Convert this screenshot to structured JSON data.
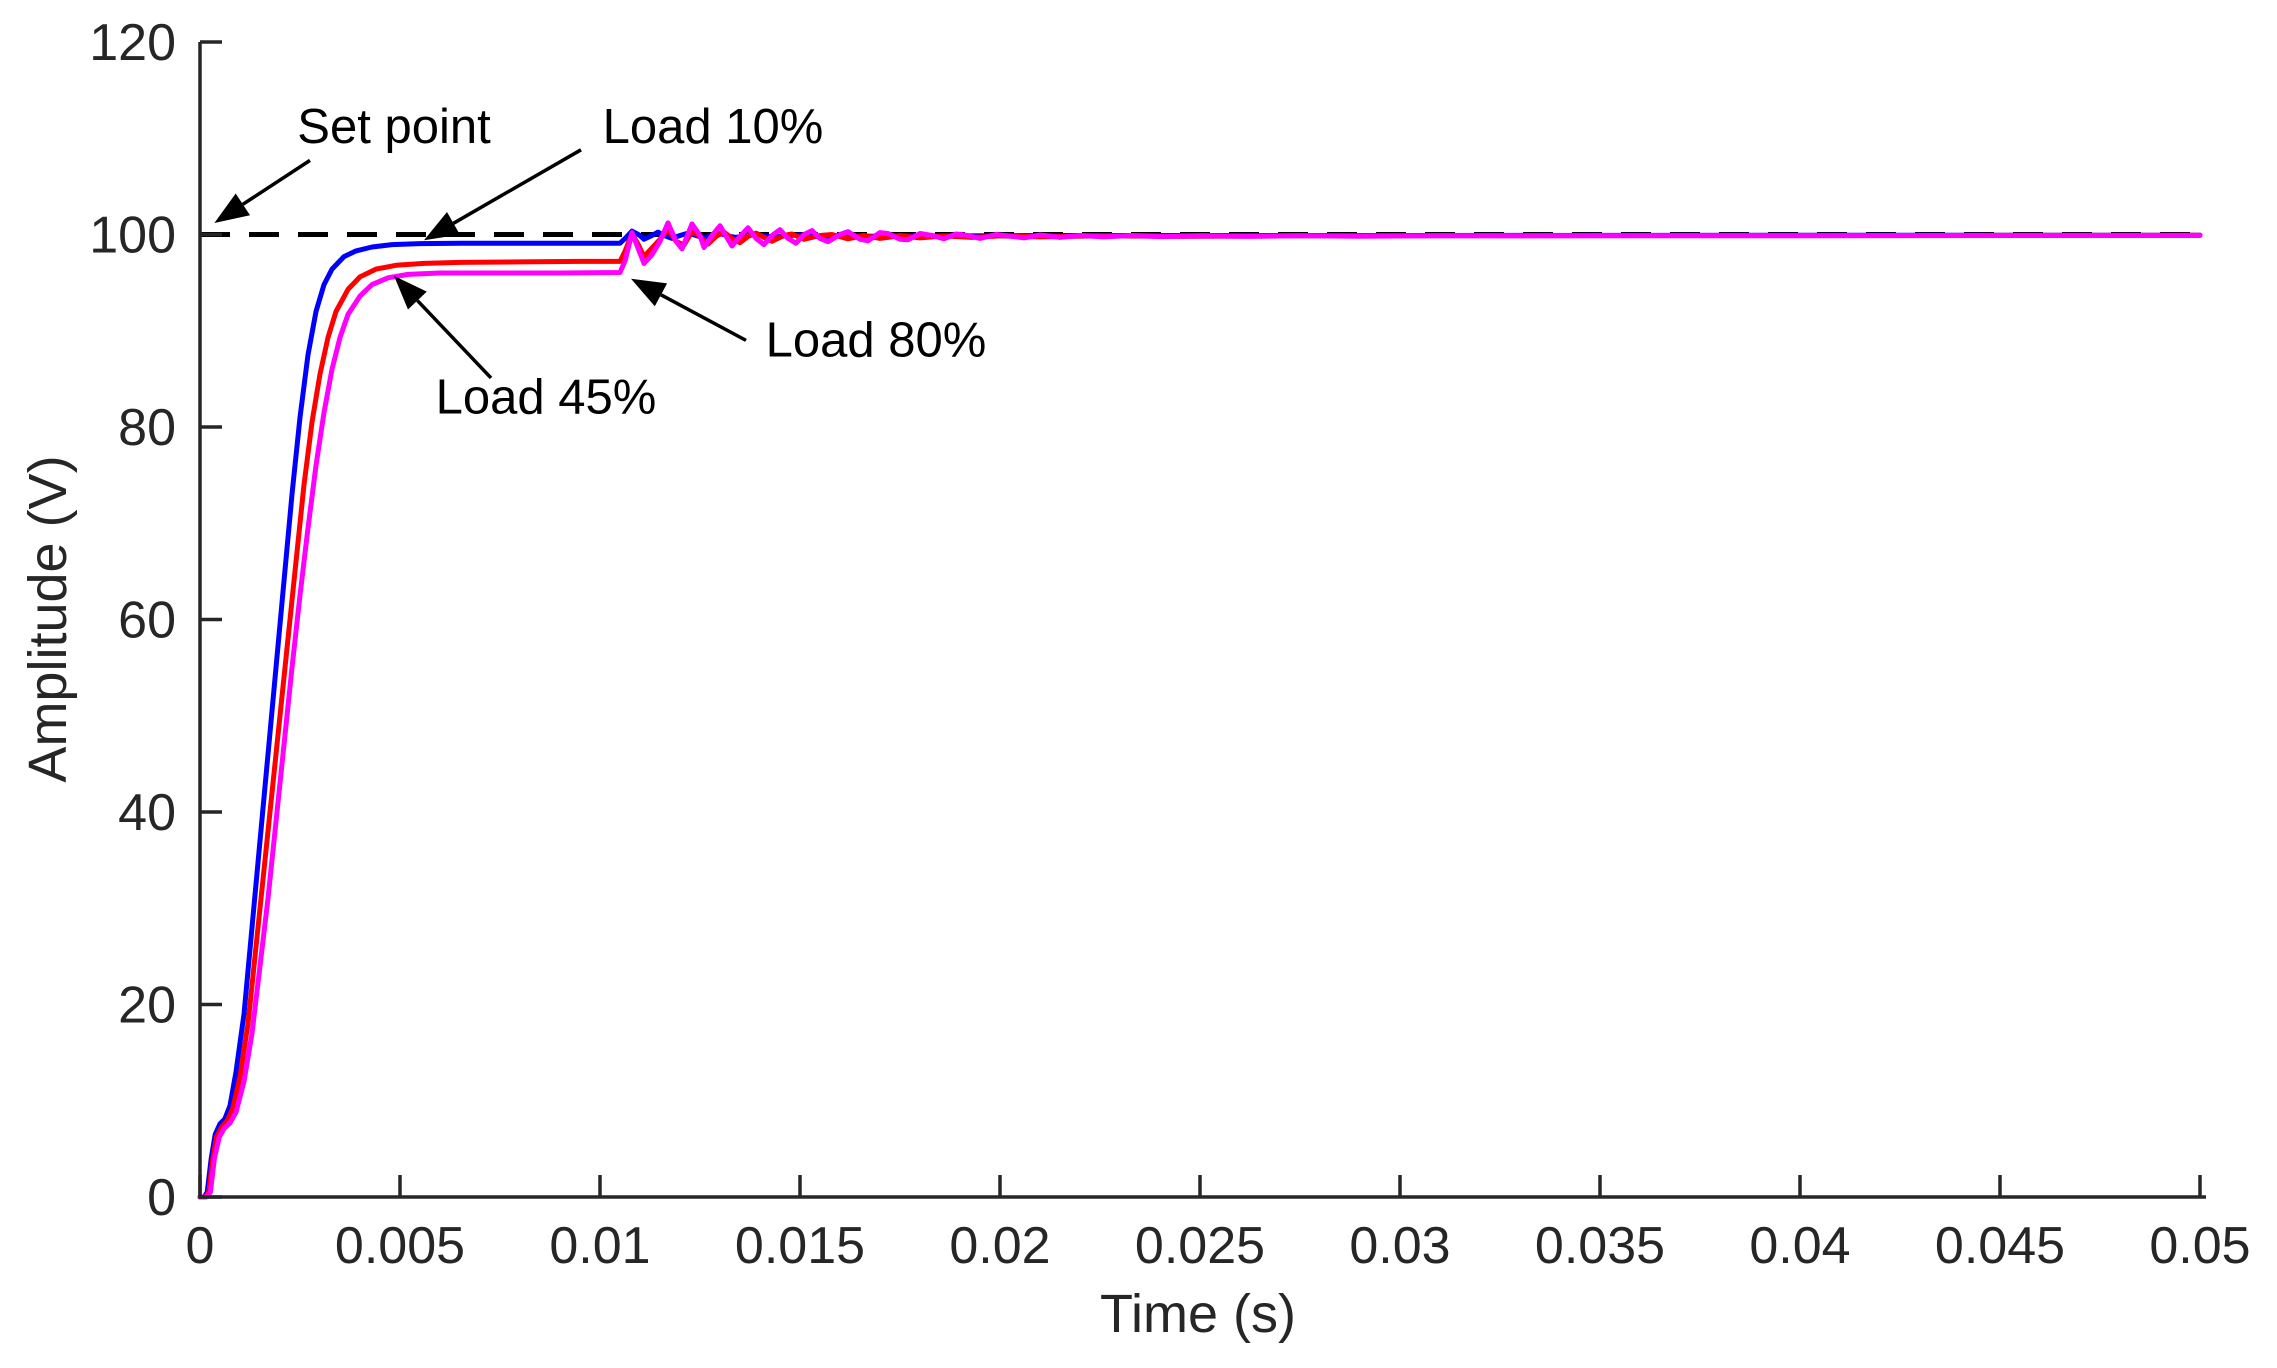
{
  "chart_data": {
    "type": "line",
    "title": "",
    "xlabel": "Time (s)",
    "ylabel": "Amplitude (V)",
    "xlim": [
      0,
      0.05
    ],
    "ylim": [
      0,
      120
    ],
    "grid": false,
    "legend_position": "none",
    "x_ticks": {
      "values": [
        0,
        0.005,
        0.01,
        0.015,
        0.02,
        0.025,
        0.03,
        0.035,
        0.04,
        0.045,
        0.05
      ],
      "labels": [
        "0",
        "0.005",
        "0.01",
        "0.015",
        "0.02",
        "0.025",
        "0.03",
        "0.035",
        "0.04",
        "0.045",
        "0.05"
      ]
    },
    "y_ticks": {
      "values": [
        0,
        20,
        40,
        60,
        80,
        100,
        120
      ],
      "labels": [
        "0",
        "20",
        "40",
        "60",
        "80",
        "100",
        "120"
      ]
    },
    "set_point": {
      "label": "Set point",
      "value": 100,
      "line_style": "dashed",
      "color": "#000000"
    },
    "series": [
      {
        "name": "Load 10%",
        "color": "#0000ff",
        "points": [
          [
            0.0,
            0
          ],
          [
            0.0001,
            0
          ],
          [
            0.00018,
            0.5
          ],
          [
            0.00028,
            4.0
          ],
          [
            0.00038,
            6.5
          ],
          [
            0.0005,
            7.6
          ],
          [
            0.00062,
            8.1
          ],
          [
            0.00075,
            9.5
          ],
          [
            0.0009,
            13
          ],
          [
            0.0011,
            19
          ],
          [
            0.0013,
            28
          ],
          [
            0.0015,
            37
          ],
          [
            0.0017,
            46
          ],
          [
            0.0019,
            55
          ],
          [
            0.0021,
            64
          ],
          [
            0.0023,
            73
          ],
          [
            0.0025,
            81
          ],
          [
            0.0027,
            87.5
          ],
          [
            0.0029,
            92
          ],
          [
            0.0031,
            94.8
          ],
          [
            0.0033,
            96.4
          ],
          [
            0.0036,
            97.7
          ],
          [
            0.0039,
            98.3
          ],
          [
            0.0043,
            98.7
          ],
          [
            0.0048,
            98.95
          ],
          [
            0.0055,
            99.05
          ],
          [
            0.0065,
            99.1
          ],
          [
            0.008,
            99.1
          ],
          [
            0.0095,
            99.1
          ],
          [
            0.0105,
            99.1
          ],
          [
            0.01063,
            99.6
          ],
          [
            0.0108,
            100.35
          ],
          [
            0.011,
            99.9
          ],
          [
            0.0111,
            99.5
          ],
          [
            0.0113,
            99.9
          ],
          [
            0.01145,
            100.25
          ],
          [
            0.0116,
            99.9
          ],
          [
            0.0118,
            99.6
          ],
          [
            0.012,
            99.9
          ],
          [
            0.0122,
            100.15
          ],
          [
            0.0124,
            99.9
          ],
          [
            0.0126,
            99.65
          ],
          [
            0.0128,
            99.9
          ],
          [
            0.013,
            100.1
          ],
          [
            0.0132,
            99.85
          ],
          [
            0.0134,
            99.7
          ],
          [
            0.0137,
            99.9
          ],
          [
            0.0139,
            100.0
          ],
          [
            0.0142,
            99.8
          ],
          [
            0.0144,
            99.75
          ],
          [
            0.0147,
            99.9
          ],
          [
            0.015,
            99.95
          ],
          [
            0.0154,
            99.8
          ],
          [
            0.0158,
            99.85
          ],
          [
            0.0163,
            99.92
          ],
          [
            0.0168,
            99.82
          ],
          [
            0.0175,
            99.9
          ],
          [
            0.0185,
            99.85
          ],
          [
            0.02,
            99.88
          ],
          [
            0.022,
            99.9
          ],
          [
            0.025,
            99.9
          ],
          [
            0.03,
            99.9
          ],
          [
            0.035,
            99.91
          ],
          [
            0.04,
            99.92
          ],
          [
            0.045,
            99.92
          ],
          [
            0.05,
            99.93
          ]
        ]
      },
      {
        "name": "Load 45%",
        "color": "#ff0000",
        "points": [
          [
            0.0,
            0
          ],
          [
            0.00013,
            0
          ],
          [
            0.00022,
            0.5
          ],
          [
            0.00032,
            4.0
          ],
          [
            0.00042,
            6.3
          ],
          [
            0.00055,
            7.3
          ],
          [
            0.00068,
            7.9
          ],
          [
            0.00082,
            9.2
          ],
          [
            0.001,
            12.5
          ],
          [
            0.0012,
            18
          ],
          [
            0.0014,
            26
          ],
          [
            0.0016,
            34
          ],
          [
            0.0018,
            42
          ],
          [
            0.002,
            50
          ],
          [
            0.0022,
            58
          ],
          [
            0.0024,
            66
          ],
          [
            0.0026,
            74
          ],
          [
            0.0028,
            80.5
          ],
          [
            0.003,
            85.5
          ],
          [
            0.0032,
            89.3
          ],
          [
            0.0034,
            92
          ],
          [
            0.0037,
            94.3
          ],
          [
            0.004,
            95.6
          ],
          [
            0.0044,
            96.4
          ],
          [
            0.0049,
            96.8
          ],
          [
            0.0056,
            97.0
          ],
          [
            0.0065,
            97.1
          ],
          [
            0.008,
            97.15
          ],
          [
            0.0095,
            97.2
          ],
          [
            0.0105,
            97.2
          ],
          [
            0.01063,
            98.3
          ],
          [
            0.0108,
            100.1
          ],
          [
            0.01095,
            99.0
          ],
          [
            0.0111,
            97.7
          ],
          [
            0.0113,
            98.6
          ],
          [
            0.0115,
            99.5
          ],
          [
            0.0117,
            100.5
          ],
          [
            0.0119,
            99.3
          ],
          [
            0.0121,
            98.9
          ],
          [
            0.0123,
            100.3
          ],
          [
            0.0125,
            99.8
          ],
          [
            0.0127,
            99.0
          ],
          [
            0.0129,
            99.8
          ],
          [
            0.0131,
            100.25
          ],
          [
            0.0133,
            99.6
          ],
          [
            0.0135,
            99.15
          ],
          [
            0.0137,
            99.8
          ],
          [
            0.0139,
            100.15
          ],
          [
            0.0141,
            99.7
          ],
          [
            0.0143,
            99.3
          ],
          [
            0.0146,
            99.9
          ],
          [
            0.0148,
            100.05
          ],
          [
            0.0151,
            99.5
          ],
          [
            0.0155,
            99.9
          ],
          [
            0.0158,
            100.0
          ],
          [
            0.0162,
            99.55
          ],
          [
            0.0166,
            99.9
          ],
          [
            0.017,
            99.6
          ],
          [
            0.0175,
            99.88
          ],
          [
            0.018,
            99.65
          ],
          [
            0.0186,
            99.85
          ],
          [
            0.0193,
            99.7
          ],
          [
            0.02,
            99.85
          ],
          [
            0.021,
            99.75
          ],
          [
            0.0225,
            99.85
          ],
          [
            0.0245,
            99.8
          ],
          [
            0.027,
            99.85
          ],
          [
            0.03,
            99.88
          ],
          [
            0.035,
            99.9
          ],
          [
            0.04,
            99.9
          ],
          [
            0.045,
            99.91
          ],
          [
            0.05,
            99.92
          ]
        ]
      },
      {
        "name": "Load 80%",
        "color": "#ff00ff",
        "points": [
          [
            0.0,
            0
          ],
          [
            0.00016,
            0
          ],
          [
            0.00026,
            0.5
          ],
          [
            0.00036,
            4.0
          ],
          [
            0.00048,
            6.2
          ],
          [
            0.0006,
            7.1
          ],
          [
            0.00075,
            7.7
          ],
          [
            0.0009,
            8.8
          ],
          [
            0.0011,
            12
          ],
          [
            0.0013,
            17
          ],
          [
            0.0015,
            24
          ],
          [
            0.0017,
            31
          ],
          [
            0.0019,
            39
          ],
          [
            0.0021,
            47
          ],
          [
            0.0023,
            55
          ],
          [
            0.0025,
            62.5
          ],
          [
            0.0027,
            69.5
          ],
          [
            0.0029,
            76
          ],
          [
            0.0031,
            81.5
          ],
          [
            0.0033,
            86
          ],
          [
            0.0035,
            89.3
          ],
          [
            0.0037,
            91.7
          ],
          [
            0.004,
            93.6
          ],
          [
            0.0043,
            94.8
          ],
          [
            0.0047,
            95.5
          ],
          [
            0.0052,
            95.85
          ],
          [
            0.006,
            96.0
          ],
          [
            0.0075,
            96.0
          ],
          [
            0.009,
            96.0
          ],
          [
            0.0105,
            96.05
          ],
          [
            0.01063,
            97.3
          ],
          [
            0.0108,
            100.2
          ],
          [
            0.01093,
            98.8
          ],
          [
            0.0111,
            97.0
          ],
          [
            0.0113,
            97.9
          ],
          [
            0.0115,
            99.3
          ],
          [
            0.0117,
            101.2
          ],
          [
            0.0119,
            99.3
          ],
          [
            0.01205,
            98.5
          ],
          [
            0.0123,
            101.1
          ],
          [
            0.0125,
            99.9
          ],
          [
            0.0126,
            98.65
          ],
          [
            0.0128,
            99.9
          ],
          [
            0.013,
            100.9
          ],
          [
            0.0132,
            99.5
          ],
          [
            0.0133,
            98.8
          ],
          [
            0.0135,
            99.8
          ],
          [
            0.0137,
            100.7
          ],
          [
            0.0139,
            99.6
          ],
          [
            0.0141,
            98.95
          ],
          [
            0.0143,
            99.9
          ],
          [
            0.0145,
            100.5
          ],
          [
            0.0147,
            99.6
          ],
          [
            0.0149,
            99.1
          ],
          [
            0.0151,
            100.0
          ],
          [
            0.0153,
            100.4
          ],
          [
            0.0155,
            99.6
          ],
          [
            0.0157,
            99.25
          ],
          [
            0.016,
            100.0
          ],
          [
            0.0162,
            100.3
          ],
          [
            0.0165,
            99.5
          ],
          [
            0.0167,
            99.35
          ],
          [
            0.017,
            100.2
          ],
          [
            0.0172,
            100.1
          ],
          [
            0.0175,
            99.5
          ],
          [
            0.0177,
            99.45
          ],
          [
            0.018,
            100.1
          ],
          [
            0.0183,
            99.9
          ],
          [
            0.0186,
            99.55
          ],
          [
            0.0189,
            100.05
          ],
          [
            0.0192,
            99.9
          ],
          [
            0.0195,
            99.6
          ],
          [
            0.0199,
            100.0
          ],
          [
            0.0202,
            99.85
          ],
          [
            0.0206,
            99.65
          ],
          [
            0.021,
            99.95
          ],
          [
            0.0215,
            99.7
          ],
          [
            0.022,
            99.9
          ],
          [
            0.0226,
            99.75
          ],
          [
            0.0233,
            99.9
          ],
          [
            0.024,
            99.78
          ],
          [
            0.025,
            99.88
          ],
          [
            0.0262,
            99.8
          ],
          [
            0.0275,
            99.88
          ],
          [
            0.029,
            99.82
          ],
          [
            0.031,
            99.88
          ],
          [
            0.033,
            99.85
          ],
          [
            0.036,
            99.88
          ],
          [
            0.04,
            99.88
          ],
          [
            0.045,
            99.9
          ],
          [
            0.05,
            99.9
          ]
        ]
      }
    ],
    "annotations": [
      {
        "id": "set-point",
        "label": "Set point",
        "text_xy": [
          0.00485,
          109.5
        ],
        "arrow_from": [
          0.00275,
          107.7
        ],
        "arrow_tip": [
          0.00036,
          101.2
        ]
      },
      {
        "id": "load-10",
        "label": "Load 10%",
        "text_xy": [
          0.012825,
          109.5
        ],
        "arrow_from": [
          0.009525,
          108.8
        ],
        "arrow_tip": [
          0.0056,
          99.4
        ]
      },
      {
        "id": "load-45",
        "label": "Load 45%",
        "text_xy": [
          0.00865,
          81.4
        ],
        "arrow_from": [
          0.007275,
          85.1
        ],
        "arrow_tip": [
          0.00485,
          95.7
        ]
      },
      {
        "id": "load-80",
        "label": "Load 80%",
        "text_xy": [
          0.0169,
          87.3
        ],
        "arrow_from": [
          0.01365,
          89.0
        ],
        "arrow_tip": [
          0.010775,
          95.4
        ]
      }
    ]
  },
  "styles": {
    "background": "#ffffff",
    "axis_color": "#262626",
    "annotation_color": "#000000",
    "series_colors": {
      "load_10": "#0000ff",
      "load_45": "#ff0000",
      "load_80": "#ff00ff"
    }
  }
}
